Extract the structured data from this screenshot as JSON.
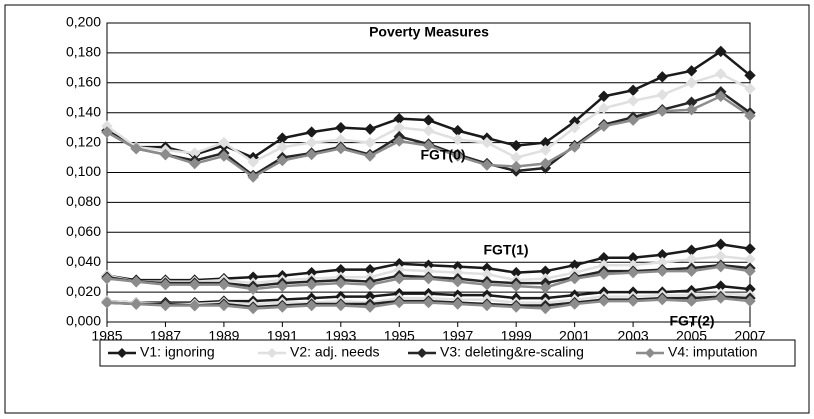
{
  "chart_data": {
    "type": "line",
    "title": "Poverty Measures",
    "x": [
      1985,
      1986,
      1987,
      1988,
      1989,
      1990,
      1991,
      1992,
      1993,
      1994,
      1995,
      1996,
      1997,
      1998,
      1999,
      2000,
      2001,
      2002,
      2003,
      2004,
      2005,
      2006,
      2007
    ],
    "xlim": [
      1985,
      2007
    ],
    "xticks": [
      1985,
      1987,
      1989,
      1991,
      1993,
      1995,
      1997,
      1999,
      2001,
      2003,
      2005,
      2007
    ],
    "ylim": [
      0,
      0.2
    ],
    "yticks": [
      {
        "value": 0,
        "label": "0,000"
      },
      {
        "value": 0.02,
        "label": "0,020"
      },
      {
        "value": 0.04,
        "label": "0,040"
      },
      {
        "value": 0.06,
        "label": "0,060"
      },
      {
        "value": 0.08,
        "label": "0,080"
      },
      {
        "value": 0.1,
        "label": "0,100"
      },
      {
        "value": 0.12,
        "label": "0,120"
      },
      {
        "value": 0.14,
        "label": "0,140"
      },
      {
        "value": 0.16,
        "label": "0,160"
      },
      {
        "value": 0.18,
        "label": "0,180"
      },
      {
        "value": 0.2,
        "label": "0,200"
      }
    ],
    "grid": true,
    "legend": "bottom",
    "measures": [
      "FGT(0)",
      "FGT(1)",
      "FGT(2)"
    ],
    "series": [
      {
        "name": "V1: ignoring",
        "color": "#1a1a1a",
        "values": [
          [
            0.128,
            0.117,
            0.117,
            0.112,
            0.118,
            0.11,
            0.123,
            0.127,
            0.13,
            0.129,
            0.136,
            0.135,
            0.128,
            0.123,
            0.118,
            0.12,
            0.134,
            0.151,
            0.155,
            0.164,
            0.168,
            0.181,
            0.165
          ],
          [
            0.031,
            0.028,
            0.028,
            0.028,
            0.029,
            0.03,
            0.031,
            0.033,
            0.035,
            0.035,
            0.039,
            0.038,
            0.037,
            0.036,
            0.033,
            0.034,
            0.038,
            0.043,
            0.043,
            0.045,
            0.048,
            0.052,
            0.049
          ],
          [
            0.014,
            0.013,
            0.013,
            0.013,
            0.014,
            0.014,
            0.015,
            0.016,
            0.017,
            0.017,
            0.019,
            0.019,
            0.018,
            0.018,
            0.016,
            0.016,
            0.018,
            0.02,
            0.02,
            0.02,
            0.021,
            0.024,
            0.022
          ]
        ]
      },
      {
        "name": "V2: adj. needs",
        "color": "#e0e0e0",
        "values": [
          [
            0.131,
            0.117,
            0.115,
            0.113,
            0.12,
            0.107,
            0.117,
            0.12,
            0.122,
            0.12,
            0.13,
            0.128,
            0.122,
            0.12,
            0.11,
            0.115,
            0.13,
            0.143,
            0.148,
            0.152,
            0.16,
            0.166,
            0.156
          ],
          [
            0.031,
            0.027,
            0.027,
            0.027,
            0.028,
            0.026,
            0.028,
            0.029,
            0.03,
            0.03,
            0.035,
            0.034,
            0.033,
            0.032,
            0.028,
            0.029,
            0.033,
            0.038,
            0.038,
            0.04,
            0.042,
            0.044,
            0.042
          ],
          [
            0.014,
            0.013,
            0.012,
            0.012,
            0.013,
            0.012,
            0.013,
            0.013,
            0.014,
            0.013,
            0.016,
            0.016,
            0.015,
            0.015,
            0.013,
            0.013,
            0.015,
            0.017,
            0.017,
            0.018,
            0.018,
            0.019,
            0.018
          ]
        ]
      },
      {
        "name": "V3: deleting&re-scaling",
        "color": "#262626",
        "values": [
          [
            0.127,
            0.116,
            0.112,
            0.108,
            0.113,
            0.098,
            0.11,
            0.113,
            0.117,
            0.112,
            0.124,
            0.119,
            0.112,
            0.106,
            0.101,
            0.103,
            0.118,
            0.132,
            0.137,
            0.142,
            0.147,
            0.154,
            0.14
          ],
          [
            0.03,
            0.027,
            0.026,
            0.026,
            0.026,
            0.024,
            0.026,
            0.027,
            0.028,
            0.027,
            0.031,
            0.03,
            0.029,
            0.027,
            0.026,
            0.026,
            0.03,
            0.034,
            0.034,
            0.035,
            0.036,
            0.038,
            0.036
          ],
          [
            0.013,
            0.012,
            0.012,
            0.011,
            0.012,
            0.01,
            0.011,
            0.012,
            0.012,
            0.012,
            0.014,
            0.014,
            0.013,
            0.012,
            0.011,
            0.011,
            0.013,
            0.015,
            0.015,
            0.016,
            0.016,
            0.017,
            0.016
          ]
        ]
      },
      {
        "name": "V4: imputation",
        "color": "#8c8c8c",
        "values": [
          [
            0.127,
            0.116,
            0.112,
            0.106,
            0.111,
            0.097,
            0.108,
            0.112,
            0.116,
            0.111,
            0.121,
            0.118,
            0.111,
            0.105,
            0.104,
            0.106,
            0.117,
            0.131,
            0.135,
            0.141,
            0.142,
            0.151,
            0.138
          ],
          [
            0.029,
            0.027,
            0.025,
            0.025,
            0.025,
            0.022,
            0.024,
            0.025,
            0.026,
            0.025,
            0.029,
            0.029,
            0.027,
            0.025,
            0.024,
            0.023,
            0.029,
            0.032,
            0.033,
            0.034,
            0.034,
            0.037,
            0.034
          ],
          [
            0.013,
            0.012,
            0.011,
            0.011,
            0.011,
            0.009,
            0.01,
            0.011,
            0.011,
            0.01,
            0.013,
            0.013,
            0.012,
            0.011,
            0.01,
            0.009,
            0.012,
            0.014,
            0.014,
            0.015,
            0.014,
            0.016,
            0.014
          ]
        ]
      }
    ]
  }
}
